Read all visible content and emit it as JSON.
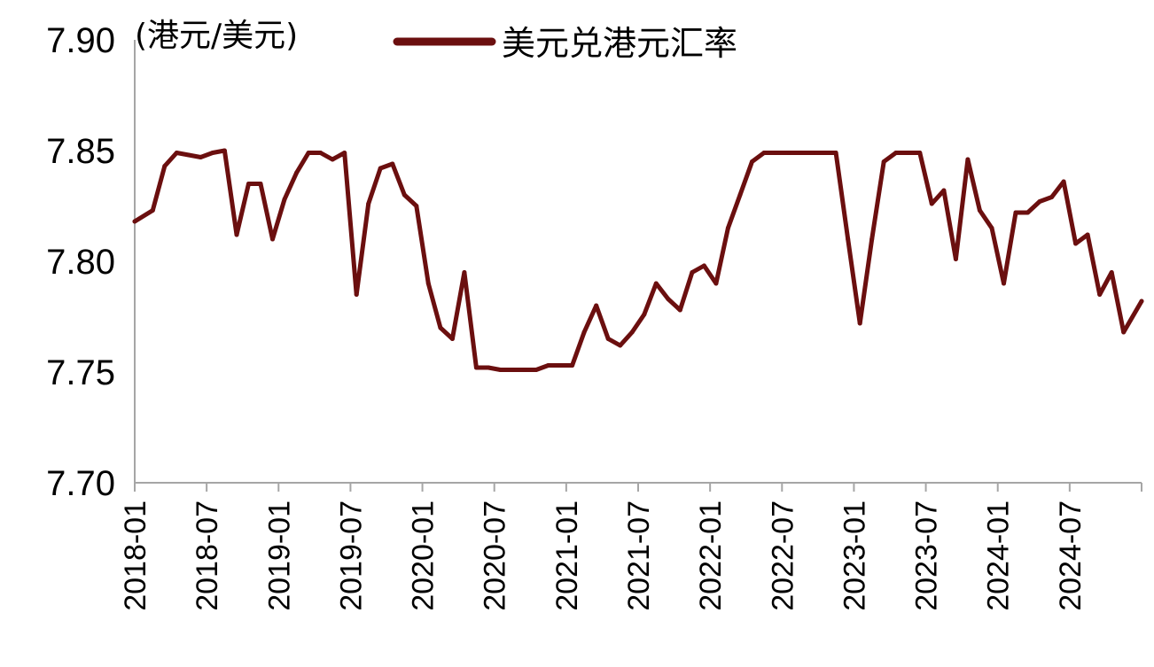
{
  "chart_data": {
    "type": "line",
    "unit_label": "(港元/美元)",
    "ylim": [
      7.7,
      7.9
    ],
    "yticks": [
      "7.90",
      "7.85",
      "7.80",
      "7.75",
      "7.70"
    ],
    "ytick_values": [
      7.9,
      7.85,
      7.8,
      7.75,
      7.7
    ],
    "xlim": [
      "2018-01",
      "2024-12"
    ],
    "xticks": [
      "2018-01",
      "2018-07",
      "2019-01",
      "2019-07",
      "2020-01",
      "2020-07",
      "2021-01",
      "2021-07",
      "2022-01",
      "2022-07",
      "2023-01",
      "2023-07",
      "2024-01",
      "2024-07"
    ],
    "grid": false,
    "legend_position": "top",
    "colors": {
      "series": "#6b0f0f",
      "axis": "#a6a6a6"
    },
    "series": [
      {
        "name": "美元兑港元汇率",
        "x": [
          "2018-01",
          "2018-02",
          "2018-03",
          "2018-04",
          "2018-05",
          "2018-06",
          "2018-07",
          "2018-08",
          "2018-09",
          "2018-10",
          "2018-11",
          "2018-12",
          "2019-01",
          "2019-02",
          "2019-03",
          "2019-04",
          "2019-05",
          "2019-06",
          "2019-07",
          "2019-08",
          "2019-09",
          "2019-10",
          "2019-11",
          "2019-12",
          "2020-01",
          "2020-02",
          "2020-03",
          "2020-04",
          "2020-05",
          "2020-06",
          "2020-07",
          "2020-08",
          "2020-09",
          "2020-10",
          "2020-11",
          "2020-12",
          "2021-01",
          "2021-02",
          "2021-03",
          "2021-04",
          "2021-05",
          "2021-06",
          "2021-07",
          "2021-08",
          "2021-09",
          "2021-10",
          "2021-11",
          "2021-12",
          "2022-01",
          "2022-02",
          "2022-03",
          "2022-04",
          "2022-05",
          "2022-06",
          "2022-07",
          "2022-08",
          "2022-09",
          "2022-10",
          "2022-11",
          "2022-12",
          "2023-01",
          "2023-02",
          "2023-03",
          "2023-04",
          "2023-05",
          "2023-06",
          "2023-07",
          "2023-08",
          "2023-09",
          "2023-10",
          "2023-11",
          "2023-12",
          "2024-01",
          "2024-02",
          "2024-03",
          "2024-04",
          "2024-05",
          "2024-06",
          "2024-07",
          "2024-08",
          "2024-09",
          "2024-10",
          "2024-11",
          "2024-12"
        ],
        "values": [
          7.818,
          7.823,
          7.843,
          7.849,
          7.848,
          7.847,
          7.849,
          7.85,
          7.812,
          7.835,
          7.835,
          7.81,
          7.828,
          7.84,
          7.849,
          7.849,
          7.846,
          7.849,
          7.785,
          7.826,
          7.842,
          7.844,
          7.83,
          7.825,
          7.79,
          7.77,
          7.765,
          7.795,
          7.752,
          7.752,
          7.751,
          7.751,
          7.751,
          7.751,
          7.753,
          7.753,
          7.753,
          7.768,
          7.78,
          7.765,
          7.762,
          7.768,
          7.776,
          7.79,
          7.783,
          7.778,
          7.795,
          7.798,
          7.79,
          7.815,
          7.83,
          7.845,
          7.849,
          7.849,
          7.849,
          7.849,
          7.849,
          7.849,
          7.849,
          7.81,
          7.772,
          7.81,
          7.845,
          7.849,
          7.849,
          7.849,
          7.826,
          7.832,
          7.801,
          7.846,
          7.823,
          7.815,
          7.79,
          7.822,
          7.822,
          7.827,
          7.829,
          7.836,
          7.808,
          7.812,
          7.785,
          7.795,
          7.768,
          7.782
        ]
      }
    ]
  }
}
